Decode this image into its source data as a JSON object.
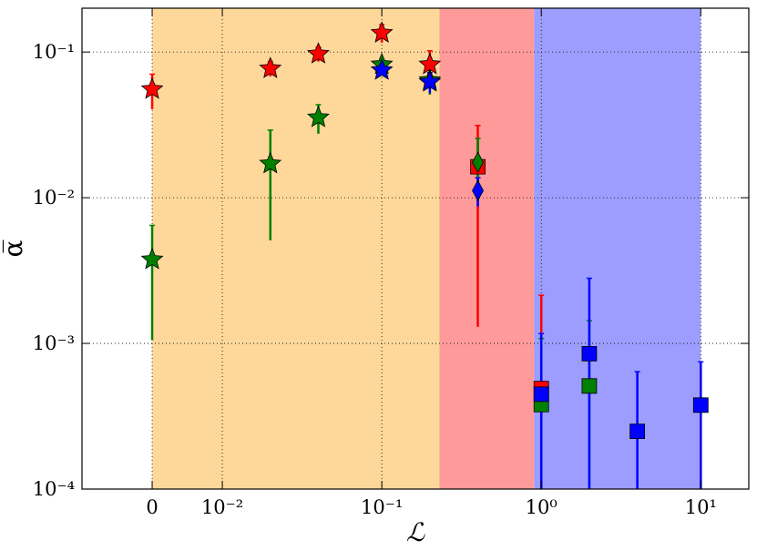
{
  "chart_data": {
    "type": "scatter",
    "xlabel": "ℒ",
    "ylabel": "α̅",
    "xscale": "symlog",
    "linthresh": 0.01,
    "linscale": 0.44,
    "yscale": "log",
    "xlim": [
      -0.01,
      20
    ],
    "ylim": [
      0.0001,
      0.2
    ],
    "xticks": [
      0,
      {
        "value": 0.01,
        "label": "10⁻²"
      },
      {
        "value": 0.1,
        "label": "10⁻¹"
      },
      {
        "value": 1,
        "label": "10⁰"
      },
      {
        "value": 10,
        "label": "10¹"
      }
    ],
    "yticks": [
      {
        "value": 0.0001,
        "label": "10⁻⁴"
      },
      {
        "value": 0.001,
        "label": "10⁻³"
      },
      {
        "value": 0.01,
        "label": "10⁻²"
      },
      {
        "value": 0.1,
        "label": "10⁻¹"
      }
    ],
    "grid": true,
    "regions": [
      {
        "x0": 0,
        "x1": 0.23,
        "color": "#fdd89a"
      },
      {
        "x0": 0.23,
        "x1": 0.9,
        "color": "#ff9a9a"
      },
      {
        "x0": 0.9,
        "x1": 10,
        "color": "#9d9dff"
      }
    ],
    "series": [
      {
        "color": "#ff0000",
        "x": [
          0,
          0.02,
          0.04,
          0.1,
          0.2,
          0.4,
          1
        ],
        "values": [
          0.0555,
          0.077,
          0.097,
          0.135,
          0.082,
          0.0163,
          0.00049
        ],
        "errors": [
          0.015,
          0.009,
          0.011,
          0.019,
          0.02,
          0.015,
          0.00165
        ],
        "markers": [
          "star",
          "star",
          "star",
          "star",
          "star",
          "square",
          "square"
        ]
      },
      {
        "color": "#008000",
        "x": [
          0,
          0.02,
          0.04,
          0.1,
          0.2,
          0.4,
          1,
          2
        ],
        "values": [
          0.00376,
          0.0171,
          0.0355,
          0.082,
          0.064,
          0.0175,
          0.00038,
          0.00051
        ],
        "errors": [
          0.0027,
          0.012,
          0.008,
          0.006,
          0.013,
          0.008,
          0.0007,
          0.00092
        ],
        "markers": [
          "star",
          "star",
          "star",
          "star",
          "star",
          "diamond",
          "square",
          "square"
        ]
      },
      {
        "color": "#0000ff",
        "x": [
          0.1,
          0.2,
          0.4,
          1,
          2,
          4,
          10
        ],
        "values": [
          0.075,
          0.0622,
          0.0112,
          0.000448,
          0.00085,
          0.000249,
          0.000377
        ],
        "errors": [
          0.006,
          0.01,
          0.0025,
          0.00072,
          0.00195,
          0.00039,
          0.00037
        ],
        "markers": [
          "star",
          "star",
          "diamond",
          "square",
          "square",
          "square",
          "square"
        ]
      }
    ]
  }
}
